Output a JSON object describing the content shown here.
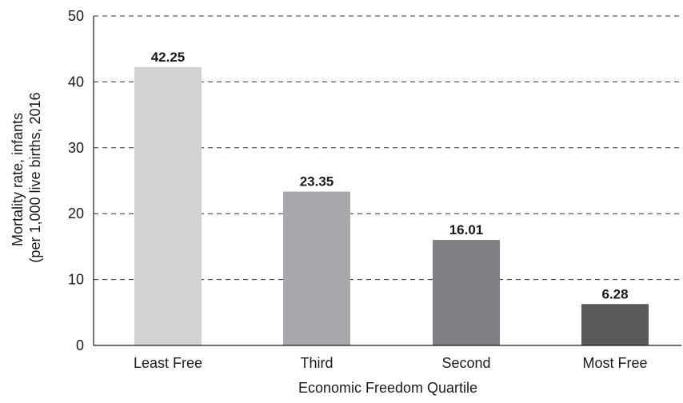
{
  "chart_data": {
    "type": "bar",
    "title": "",
    "xlabel": "Economic Freedom Quartile",
    "ylabel_line1": "Mortality rate, infants",
    "ylabel_line2": "(per 1,000 live births, 2016",
    "categories": [
      "Least Free",
      "Third",
      "Second",
      "Most Free"
    ],
    "values": [
      42.25,
      23.35,
      16.01,
      6.28
    ],
    "value_labels": [
      "42.25",
      "23.35",
      "16.01",
      "6.28"
    ],
    "bar_colors": [
      "#d1d2d4",
      "#a7a8ab",
      "#808184",
      "#58595b"
    ],
    "ylim": [
      0,
      50
    ],
    "yticks": [
      0,
      10,
      20,
      30,
      40,
      50
    ],
    "grid": true
  }
}
